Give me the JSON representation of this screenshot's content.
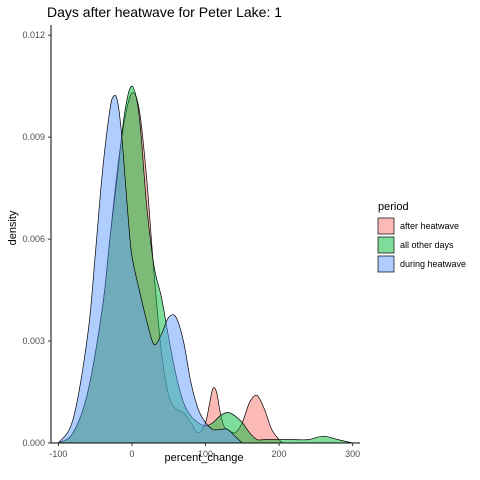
{
  "chart_data": {
    "type": "area",
    "title": "Days after heatwave for Peter Lake: 1",
    "xlabel": "percent_change",
    "ylabel": "density",
    "xlim": [
      -110,
      310
    ],
    "ylim": [
      0,
      0.0123
    ],
    "x_ticks": [
      -100,
      0,
      100,
      200,
      300
    ],
    "y_ticks": [
      0.0,
      0.003,
      0.006,
      0.009,
      0.012
    ],
    "x_tick_labels": [
      "-100",
      "0",
      "100",
      "200",
      "300"
    ],
    "y_tick_labels": [
      "0.000",
      "0.003",
      "0.006",
      "0.009",
      "0.012"
    ],
    "grid": false,
    "legend": {
      "title": "period",
      "position": "right"
    },
    "series": [
      {
        "name": "after heatwave",
        "color": "#F8766D",
        "x": [
          -100,
          -80,
          -60,
          -40,
          -30,
          -20,
          -10,
          0,
          10,
          20,
          30,
          40,
          50,
          60,
          70,
          80,
          90,
          100,
          105,
          110,
          115,
          120,
          125,
          130,
          140,
          150,
          160,
          170,
          180,
          190,
          200,
          205
        ],
        "values": [
          0.0,
          0.0003,
          0.0015,
          0.004,
          0.006,
          0.008,
          0.0095,
          0.0103,
          0.0098,
          0.0078,
          0.005,
          0.0027,
          0.0014,
          0.001,
          0.0009,
          0.0006,
          0.0003,
          0.0006,
          0.0011,
          0.0016,
          0.0015,
          0.0009,
          0.0005,
          0.0004,
          0.0003,
          0.0006,
          0.0012,
          0.0014,
          0.001,
          0.0004,
          0.0001,
          0.0
        ]
      },
      {
        "name": "all other days",
        "color": "#00BA38",
        "x": [
          -100,
          -80,
          -60,
          -40,
          -30,
          -20,
          -10,
          0,
          10,
          20,
          30,
          40,
          50,
          60,
          70,
          80,
          90,
          100,
          110,
          120,
          130,
          140,
          150,
          160,
          170,
          180,
          200,
          220,
          240,
          260,
          280,
          300
        ],
        "values": [
          0.0,
          0.0003,
          0.0015,
          0.004,
          0.006,
          0.0078,
          0.0097,
          0.0105,
          0.0096,
          0.007,
          0.0052,
          0.0043,
          0.0031,
          0.002,
          0.0012,
          0.0008,
          0.0006,
          0.0005,
          0.0006,
          0.0008,
          0.0009,
          0.0008,
          0.0006,
          0.0003,
          0.0001,
          0.0001,
          0.0001,
          0.0001,
          0.0001,
          0.0002,
          0.0001,
          0.0
        ]
      },
      {
        "name": "during heatwave",
        "color": "#619CFF",
        "x": [
          -100,
          -80,
          -60,
          -50,
          -40,
          -30,
          -25,
          -20,
          -15,
          -10,
          -5,
          0,
          10,
          20,
          30,
          40,
          50,
          60,
          70,
          80,
          90,
          100,
          110,
          120,
          130,
          140,
          150
        ],
        "values": [
          0.0,
          0.0007,
          0.0032,
          0.0055,
          0.008,
          0.0098,
          0.0102,
          0.0101,
          0.0093,
          0.008,
          0.0066,
          0.0055,
          0.0045,
          0.0036,
          0.0029,
          0.0032,
          0.0037,
          0.0037,
          0.003,
          0.0018,
          0.001,
          0.0006,
          0.0004,
          0.0004,
          0.0004,
          0.0002,
          0.0
        ]
      }
    ]
  }
}
